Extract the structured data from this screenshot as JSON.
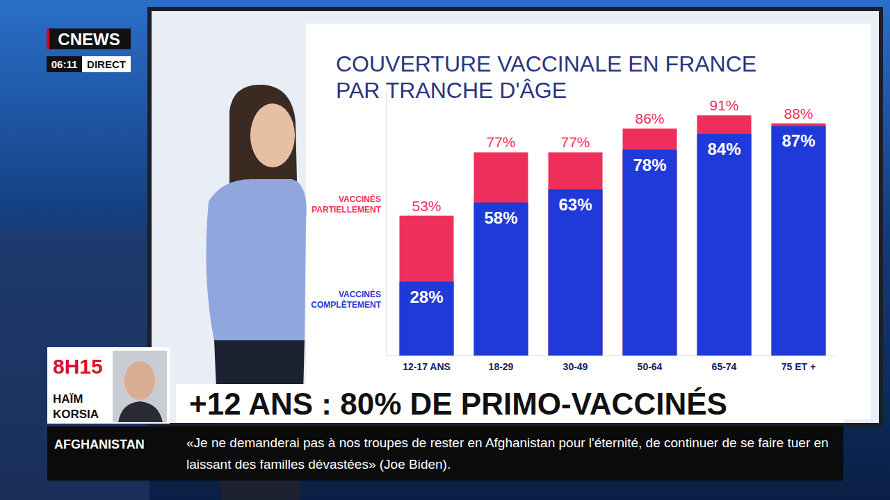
{
  "broadcast": {
    "logo": "CNEWS",
    "time": "06:11",
    "live": "DIRECT",
    "guest_time": "8H15",
    "guest_name": [
      "HAÏM",
      "KORSIA"
    ],
    "headline": "+12 ANS : 80% DE PRIMO-VACCINÉS",
    "ticker_topic": "AFGHANISTAN",
    "ticker_text": "«Je ne demanderai pas à nos troupes de rester en Afghanistan pour l'éternité, de continuer de se faire tuer en laissant des familles dévastées» (Joe Biden)."
  },
  "chart_data": {
    "type": "bar",
    "title": "COUVERTURE VACCINALE EN FRANCE PAR TRANCHE D'ÂGE",
    "categories": [
      "12-17 ANS",
      "18-29",
      "30-49",
      "50-64",
      "65-74",
      "75 ET +"
    ],
    "series": [
      {
        "name": "VACCINÉS PARTIELLEMENT",
        "color": "#ee2f5b",
        "values": [
          53,
          77,
          77,
          86,
          91,
          88
        ],
        "value_labels": [
          "53%",
          "77%",
          "77%",
          "86%",
          "91%",
          "88%"
        ]
      },
      {
        "name": "VACCINÉS COMPLÈTEMENT",
        "color": "#1f3ad8",
        "values": [
          28,
          58,
          63,
          78,
          84,
          87
        ],
        "value_labels": [
          "28%",
          "58%",
          "63%",
          "78%",
          "84%",
          "87%"
        ]
      }
    ],
    "ylim": [
      0,
      100
    ],
    "stacked": false,
    "data_labels": true,
    "tick_labels": "x",
    "legend": "left",
    "grid": false
  }
}
